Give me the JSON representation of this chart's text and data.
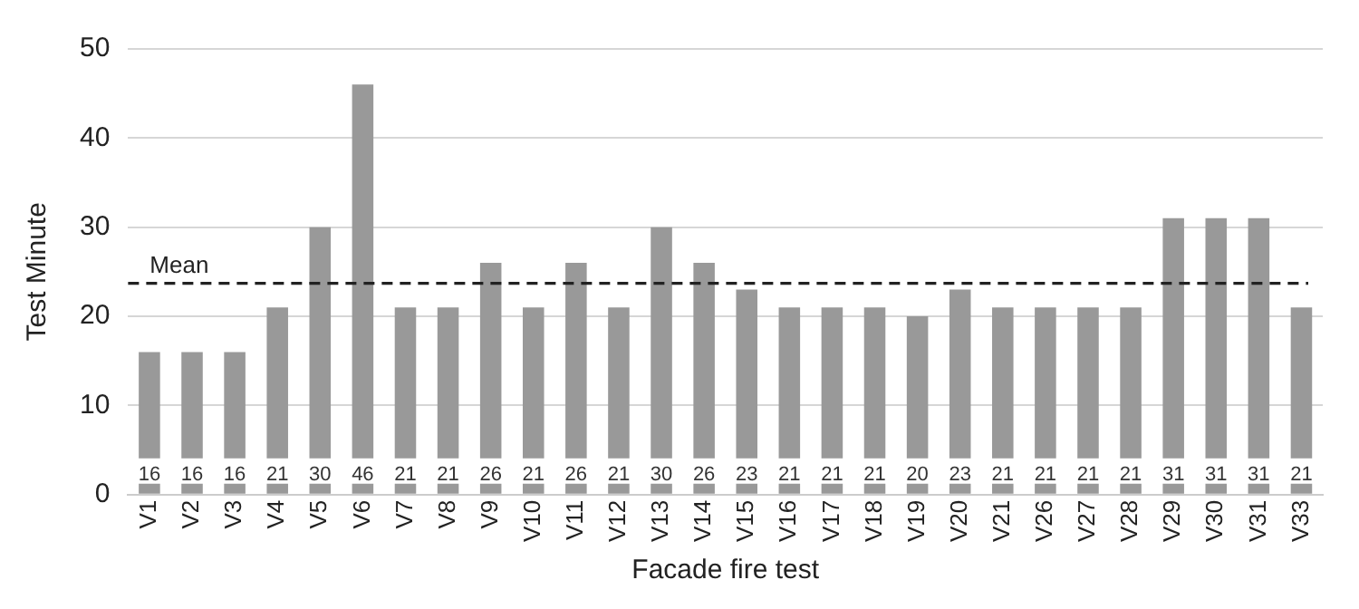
{
  "chart_data": {
    "type": "bar",
    "xlabel": "Facade fire test",
    "ylabel": "Test Minute",
    "categories": [
      "V1",
      "V2",
      "V3",
      "V4",
      "V5",
      "V6",
      "V7",
      "V8",
      "V9",
      "V10",
      "V11",
      "V12",
      "V13",
      "V14",
      "V15",
      "V16",
      "V17",
      "V18",
      "V19",
      "V20",
      "V21",
      "V26",
      "V27",
      "V28",
      "V29",
      "V30",
      "V31",
      "V33"
    ],
    "values": [
      16,
      16,
      16,
      21,
      30,
      46,
      21,
      21,
      26,
      21,
      26,
      21,
      30,
      26,
      23,
      21,
      21,
      21,
      20,
      23,
      21,
      21,
      21,
      21,
      31,
      31,
      31,
      21
    ],
    "color": "#999999",
    "ylim": [
      0,
      50
    ],
    "yticks": [
      0,
      10,
      20,
      30,
      40,
      50
    ],
    "grid": "y",
    "legend": false,
    "data_labels": true,
    "ref_lines": [
      {
        "axis": "y",
        "value": 23.7,
        "label": "Mean",
        "color": "#222222",
        "line_style": "dashed"
      }
    ]
  }
}
